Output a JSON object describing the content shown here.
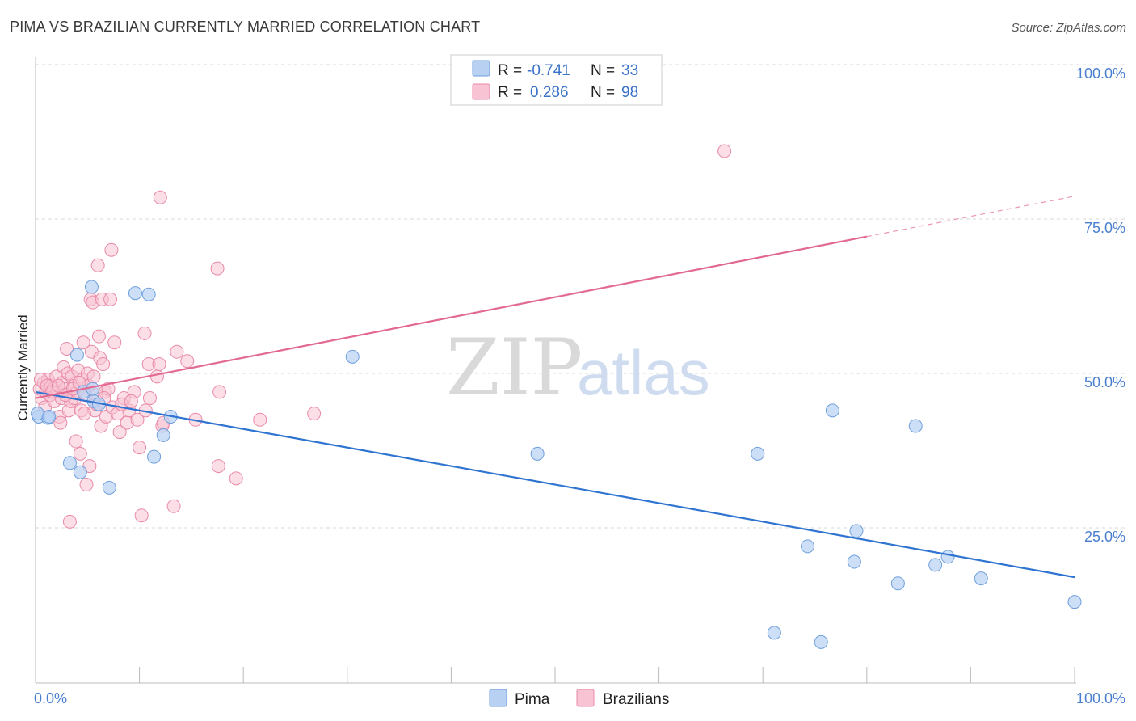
{
  "title": "PIMA VS BRAZILIAN CURRENTLY MARRIED CORRELATION CHART",
  "source": "Source: ZipAtlas.com",
  "watermark": {
    "zip": "ZIP",
    "atlas": "atlas"
  },
  "colors": {
    "pima_fill": "#b8d1f3",
    "pima_stroke": "#6e9fdc",
    "pima_line": "#2f74d0",
    "braz_fill": "#f8c3d2",
    "braz_stroke": "#e98aa8",
    "braz_line": "#e26a92",
    "grid": "#d9d9d9",
    "axis": "#bbbbbb"
  },
  "legend": {
    "rows": [
      {
        "series": "pima",
        "r_label": "R =",
        "r_value": "-0.741",
        "n_label": "N =",
        "n_value": "33"
      },
      {
        "series": "brazilians",
        "r_label": "R =",
        "r_value": "0.286",
        "n_label": "N =",
        "n_value": "98"
      }
    ]
  },
  "chart_data": {
    "type": "scatter",
    "title": "PIMA VS BRAZILIAN CURRENTLY MARRIED CORRELATION CHART",
    "xlabel": "",
    "ylabel": "Currently Married",
    "xlim": [
      0,
      100
    ],
    "ylim": [
      0,
      104
    ],
    "x_tick_labels": [
      {
        "value": 0,
        "label": "0.0%"
      },
      {
        "value": 100,
        "label": "100.0%"
      }
    ],
    "y_tick_labels": [
      {
        "value": 25,
        "label": "25.0%"
      },
      {
        "value": 50,
        "label": "50.0%"
      },
      {
        "value": 75,
        "label": "75.0%"
      },
      {
        "value": 100,
        "label": "100.0%"
      }
    ],
    "grid": true,
    "series": [
      {
        "name": "Pima",
        "r": -0.741,
        "n": 33,
        "points": [
          [
            0.3,
            43.0
          ],
          [
            1.2,
            42.8
          ],
          [
            3.3,
            35.5
          ],
          [
            4.0,
            53.0
          ],
          [
            4.3,
            34.0
          ],
          [
            4.6,
            47.0
          ],
          [
            5.6,
            45.5
          ],
          [
            5.5,
            47.5
          ],
          [
            5.4,
            64.0
          ],
          [
            6.1,
            45.0
          ],
          [
            7.1,
            31.5
          ],
          [
            9.6,
            63.0
          ],
          [
            10.9,
            62.8
          ],
          [
            11.4,
            36.5
          ],
          [
            12.3,
            40.0
          ],
          [
            13.0,
            43.0
          ],
          [
            30.5,
            52.7
          ],
          [
            48.3,
            37.0
          ],
          [
            69.5,
            37.0
          ],
          [
            71.1,
            8.0
          ],
          [
            74.3,
            22.0
          ],
          [
            75.6,
            6.5
          ],
          [
            76.7,
            44.0
          ],
          [
            79.0,
            24.5
          ],
          [
            78.8,
            19.5
          ],
          [
            83.0,
            16.0
          ],
          [
            84.7,
            41.5
          ],
          [
            86.6,
            19.0
          ],
          [
            87.8,
            20.3
          ],
          [
            91.0,
            16.8
          ],
          [
            100.0,
            13.0
          ],
          [
            0.2,
            43.5
          ],
          [
            1.3,
            43.0
          ]
        ],
        "trend": {
          "x0": 0,
          "y0": 47.0,
          "x1": 100,
          "y1": 17.0
        }
      },
      {
        "name": "Brazilians",
        "r": 0.286,
        "n": 98,
        "points": [
          [
            0.4,
            47.5
          ],
          [
            0.6,
            46.0
          ],
          [
            0.8,
            48.5
          ],
          [
            0.9,
            44.5
          ],
          [
            1.0,
            47.0
          ],
          [
            1.2,
            49.0
          ],
          [
            1.4,
            46.5
          ],
          [
            1.5,
            48.0
          ],
          [
            1.7,
            47.5
          ],
          [
            1.8,
            45.5
          ],
          [
            2.0,
            49.5
          ],
          [
            2.1,
            47.0
          ],
          [
            2.3,
            43.0
          ],
          [
            2.4,
            42.0
          ],
          [
            2.5,
            46.0
          ],
          [
            2.6,
            48.5
          ],
          [
            2.7,
            51.0
          ],
          [
            2.8,
            47.5
          ],
          [
            3.0,
            54.0
          ],
          [
            3.1,
            50.0
          ],
          [
            3.2,
            44.0
          ],
          [
            3.3,
            26.0
          ],
          [
            3.4,
            45.5
          ],
          [
            3.5,
            49.5
          ],
          [
            3.7,
            48.0
          ],
          [
            3.8,
            46.0
          ],
          [
            3.9,
            39.0
          ],
          [
            4.0,
            47.0
          ],
          [
            4.1,
            50.5
          ],
          [
            4.3,
            37.0
          ],
          [
            4.4,
            44.0
          ],
          [
            4.5,
            49.0
          ],
          [
            4.6,
            55.0
          ],
          [
            4.8,
            46.5
          ],
          [
            4.9,
            32.0
          ],
          [
            5.0,
            50.0
          ],
          [
            5.1,
            48.0
          ],
          [
            5.2,
            35.0
          ],
          [
            5.3,
            62.0
          ],
          [
            5.4,
            53.5
          ],
          [
            5.5,
            61.5
          ],
          [
            5.6,
            49.5
          ],
          [
            5.7,
            44.0
          ],
          [
            5.8,
            46.5
          ],
          [
            6.0,
            67.5
          ],
          [
            6.1,
            56.0
          ],
          [
            6.2,
            52.5
          ],
          [
            6.3,
            41.5
          ],
          [
            6.4,
            62.0
          ],
          [
            6.5,
            51.5
          ],
          [
            6.7,
            47.0
          ],
          [
            6.8,
            43.0
          ],
          [
            7.0,
            47.5
          ],
          [
            7.2,
            62.0
          ],
          [
            7.3,
            70.0
          ],
          [
            7.4,
            44.5
          ],
          [
            7.6,
            55.0
          ],
          [
            7.9,
            43.5
          ],
          [
            8.1,
            40.5
          ],
          [
            8.5,
            46.0
          ],
          [
            8.8,
            42.0
          ],
          [
            9.0,
            44.0
          ],
          [
            9.5,
            47.0
          ],
          [
            9.8,
            42.5
          ],
          [
            10.0,
            38.0
          ],
          [
            10.2,
            27.0
          ],
          [
            10.6,
            44.0
          ],
          [
            10.5,
            56.5
          ],
          [
            10.9,
            51.5
          ],
          [
            11.7,
            49.5
          ],
          [
            11.9,
            51.5
          ],
          [
            12.0,
            78.5
          ],
          [
            12.2,
            41.5
          ],
          [
            12.3,
            42.0
          ],
          [
            13.3,
            28.5
          ],
          [
            13.6,
            53.5
          ],
          [
            14.6,
            52.0
          ],
          [
            15.4,
            42.5
          ],
          [
            17.5,
            67.0
          ],
          [
            17.6,
            35.0
          ],
          [
            17.7,
            47.0
          ],
          [
            19.3,
            33.0
          ],
          [
            21.6,
            42.5
          ],
          [
            26.8,
            43.5
          ],
          [
            66.3,
            86.0
          ],
          [
            0.5,
            49.0
          ],
          [
            1.1,
            48.0
          ],
          [
            1.6,
            47.0
          ],
          [
            2.2,
            48.0
          ],
          [
            2.9,
            46.5
          ],
          [
            3.6,
            47.5
          ],
          [
            4.2,
            48.5
          ],
          [
            4.7,
            43.5
          ],
          [
            5.9,
            45.0
          ],
          [
            6.6,
            46.0
          ],
          [
            8.3,
            45.0
          ],
          [
            9.2,
            45.5
          ],
          [
            11.0,
            46.0
          ]
        ],
        "trend": {
          "x0": 0,
          "y0": 46.0,
          "x1": 100,
          "y1": 78.7,
          "solid_until_x": 80
        }
      }
    ],
    "legend_position": "top-center"
  },
  "bottom_legend": [
    {
      "series": "pima",
      "label": "Pima"
    },
    {
      "series": "brazilians",
      "label": "Brazilians"
    }
  ]
}
